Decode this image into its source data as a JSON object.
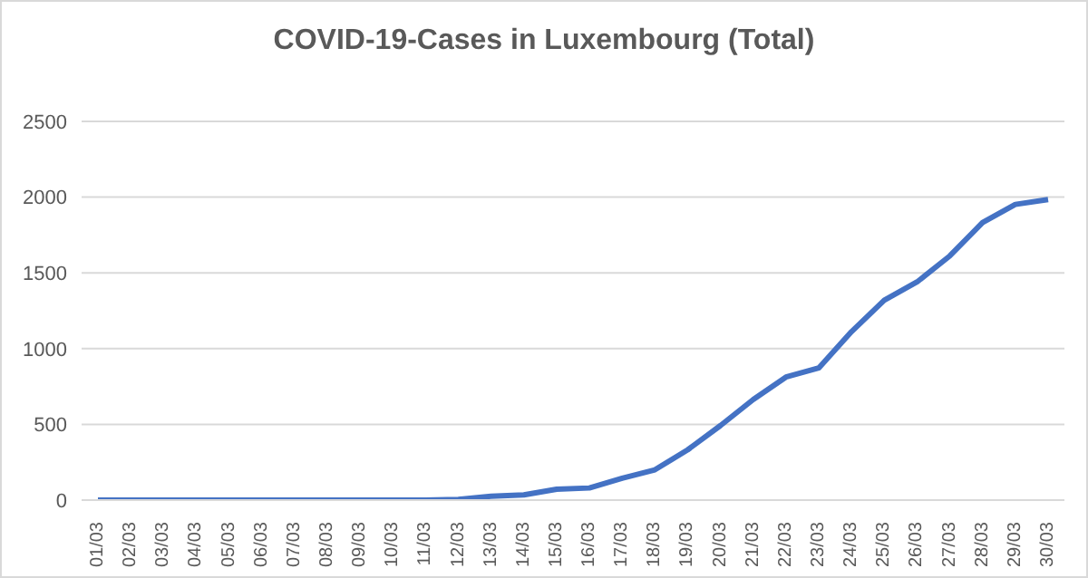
{
  "chart_data": {
    "type": "line",
    "title": "COVID-19-Cases in Luxembourg (Total)",
    "categories": [
      "01/03",
      "02/03",
      "03/03",
      "04/03",
      "05/03",
      "06/03",
      "07/03",
      "08/03",
      "09/03",
      "10/03",
      "11/03",
      "12/03",
      "13/03",
      "14/03",
      "15/03",
      "16/03",
      "17/03",
      "18/03",
      "19/03",
      "20/03",
      "21/03",
      "22/03",
      "23/03",
      "24/03",
      "25/03",
      "26/03",
      "27/03",
      "28/03",
      "29/03",
      "30/03"
    ],
    "series": [
      {
        "color": "#4472c4",
        "values": [
          0,
          0,
          0,
          0,
          0,
          0,
          0,
          0,
          0,
          0,
          0,
          5,
          26,
          34,
          72,
          80,
          144,
          200,
          332,
          492,
          664,
          812,
          872,
          1112,
          1320,
          1440,
          1612,
          1832,
          1952,
          1984
        ]
      }
    ],
    "ylim": [
      0,
      2500
    ],
    "yticks": [
      0,
      500,
      1000,
      1500,
      2000,
      2500
    ],
    "grid": "y",
    "marker": "none",
    "line_style": "solid"
  }
}
